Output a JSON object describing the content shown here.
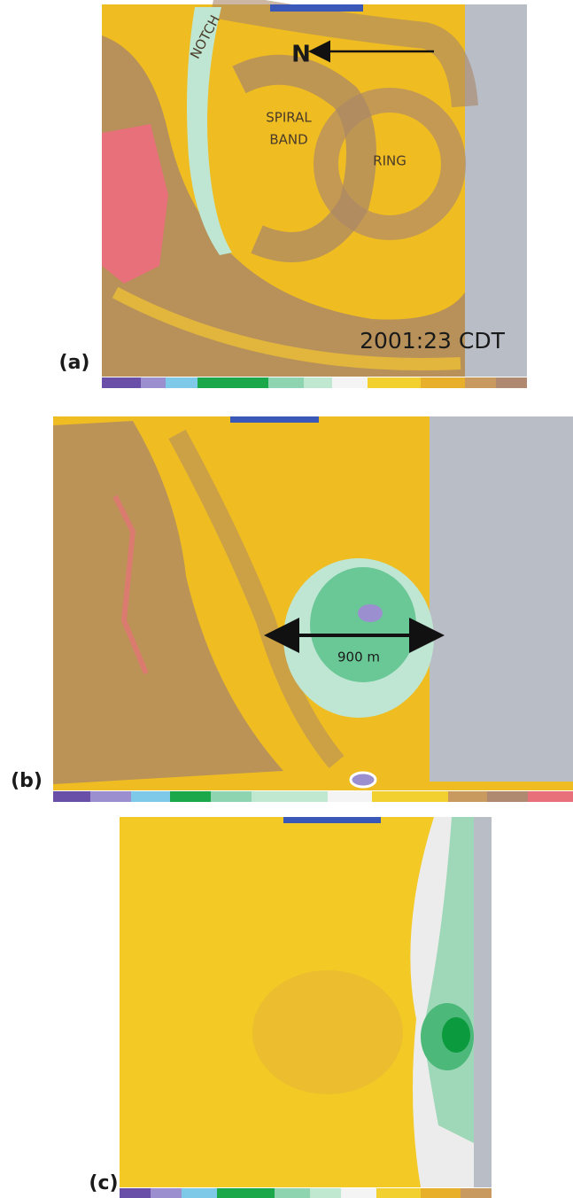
{
  "panels": [
    {
      "label": "(a)",
      "annotations": {
        "notch": "NOTCH",
        "north": "N",
        "spiral_band": [
          "SPIRAL",
          "BAND"
        ],
        "ring": "RING",
        "time": "2001:23 CDT"
      }
    },
    {
      "label": "(b)",
      "annotations": {
        "scale": "900 m"
      }
    },
    {
      "label": "(c)"
    }
  ]
}
